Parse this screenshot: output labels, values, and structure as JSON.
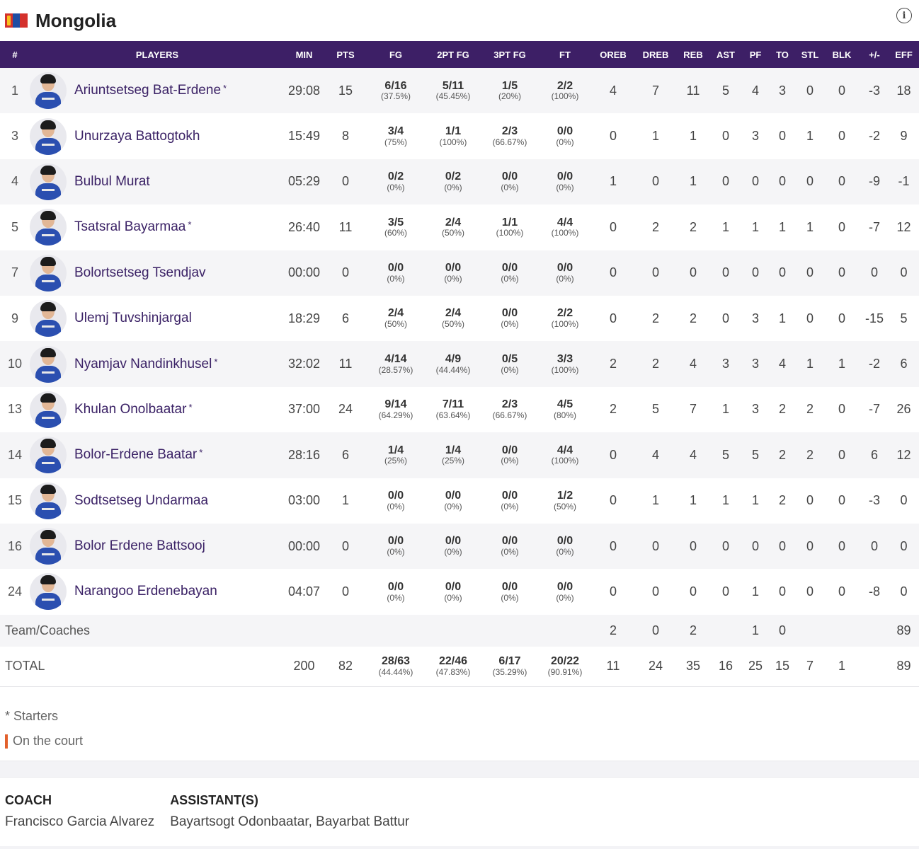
{
  "team": {
    "name": "Mongolia"
  },
  "columns": [
    "#",
    "PLAYERS",
    "MIN",
    "PTS",
    "FG",
    "2PT FG",
    "3PT FG",
    "FT",
    "OREB",
    "DREB",
    "REB",
    "AST",
    "PF",
    "TO",
    "STL",
    "BLK",
    "+/-",
    "EFF"
  ],
  "players": [
    {
      "no": "1",
      "name": "Ariuntsetseg Bat-Erdene",
      "starter": "*",
      "min": "29:08",
      "pts": "15",
      "fg": "6/16",
      "fgp": "(37.5%)",
      "fg2": "5/11",
      "fg2p": "(45.45%)",
      "fg3": "1/5",
      "fg3p": "(20%)",
      "ft": "2/2",
      "ftp": "(100%)",
      "oreb": "4",
      "dreb": "7",
      "reb": "11",
      "ast": "5",
      "pf": "4",
      "to": "3",
      "stl": "0",
      "blk": "0",
      "pm": "-3",
      "eff": "18"
    },
    {
      "no": "3",
      "name": "Unurzaya Battogtokh",
      "starter": "",
      "min": "15:49",
      "pts": "8",
      "fg": "3/4",
      "fgp": "(75%)",
      "fg2": "1/1",
      "fg2p": "(100%)",
      "fg3": "2/3",
      "fg3p": "(66.67%)",
      "ft": "0/0",
      "ftp": "(0%)",
      "oreb": "0",
      "dreb": "1",
      "reb": "1",
      "ast": "0",
      "pf": "3",
      "to": "0",
      "stl": "1",
      "blk": "0",
      "pm": "-2",
      "eff": "9"
    },
    {
      "no": "4",
      "name": "Bulbul Murat",
      "starter": "",
      "min": "05:29",
      "pts": "0",
      "fg": "0/2",
      "fgp": "(0%)",
      "fg2": "0/2",
      "fg2p": "(0%)",
      "fg3": "0/0",
      "fg3p": "(0%)",
      "ft": "0/0",
      "ftp": "(0%)",
      "oreb": "1",
      "dreb": "0",
      "reb": "1",
      "ast": "0",
      "pf": "0",
      "to": "0",
      "stl": "0",
      "blk": "0",
      "pm": "-9",
      "eff": "-1"
    },
    {
      "no": "5",
      "name": "Tsatsral Bayarmaa",
      "starter": "*",
      "min": "26:40",
      "pts": "11",
      "fg": "3/5",
      "fgp": "(60%)",
      "fg2": "2/4",
      "fg2p": "(50%)",
      "fg3": "1/1",
      "fg3p": "(100%)",
      "ft": "4/4",
      "ftp": "(100%)",
      "oreb": "0",
      "dreb": "2",
      "reb": "2",
      "ast": "1",
      "pf": "1",
      "to": "1",
      "stl": "1",
      "blk": "0",
      "pm": "-7",
      "eff": "12"
    },
    {
      "no": "7",
      "name": "Bolortsetseg Tsendjav",
      "starter": "",
      "min": "00:00",
      "pts": "0",
      "fg": "0/0",
      "fgp": "(0%)",
      "fg2": "0/0",
      "fg2p": "(0%)",
      "fg3": "0/0",
      "fg3p": "(0%)",
      "ft": "0/0",
      "ftp": "(0%)",
      "oreb": "0",
      "dreb": "0",
      "reb": "0",
      "ast": "0",
      "pf": "0",
      "to": "0",
      "stl": "0",
      "blk": "0",
      "pm": "0",
      "eff": "0"
    },
    {
      "no": "9",
      "name": "Ulemj Tuvshinjargal",
      "starter": "",
      "min": "18:29",
      "pts": "6",
      "fg": "2/4",
      "fgp": "(50%)",
      "fg2": "2/4",
      "fg2p": "(50%)",
      "fg3": "0/0",
      "fg3p": "(0%)",
      "ft": "2/2",
      "ftp": "(100%)",
      "oreb": "0",
      "dreb": "2",
      "reb": "2",
      "ast": "0",
      "pf": "3",
      "to": "1",
      "stl": "0",
      "blk": "0",
      "pm": "-15",
      "eff": "5"
    },
    {
      "no": "10",
      "name": "Nyamjav Nandinkhusel",
      "starter": "*",
      "min": "32:02",
      "pts": "11",
      "fg": "4/14",
      "fgp": "(28.57%)",
      "fg2": "4/9",
      "fg2p": "(44.44%)",
      "fg3": "0/5",
      "fg3p": "(0%)",
      "ft": "3/3",
      "ftp": "(100%)",
      "oreb": "2",
      "dreb": "2",
      "reb": "4",
      "ast": "3",
      "pf": "3",
      "to": "4",
      "stl": "1",
      "blk": "1",
      "pm": "-2",
      "eff": "6"
    },
    {
      "no": "13",
      "name": "Khulan Onolbaatar",
      "starter": "*",
      "min": "37:00",
      "pts": "24",
      "fg": "9/14",
      "fgp": "(64.29%)",
      "fg2": "7/11",
      "fg2p": "(63.64%)",
      "fg3": "2/3",
      "fg3p": "(66.67%)",
      "ft": "4/5",
      "ftp": "(80%)",
      "oreb": "2",
      "dreb": "5",
      "reb": "7",
      "ast": "1",
      "pf": "3",
      "to": "2",
      "stl": "2",
      "blk": "0",
      "pm": "-7",
      "eff": "26"
    },
    {
      "no": "14",
      "name": "Bolor-Erdene Baatar",
      "starter": "*",
      "min": "28:16",
      "pts": "6",
      "fg": "1/4",
      "fgp": "(25%)",
      "fg2": "1/4",
      "fg2p": "(25%)",
      "fg3": "0/0",
      "fg3p": "(0%)",
      "ft": "4/4",
      "ftp": "(100%)",
      "oreb": "0",
      "dreb": "4",
      "reb": "4",
      "ast": "5",
      "pf": "5",
      "to": "2",
      "stl": "2",
      "blk": "0",
      "pm": "6",
      "eff": "12"
    },
    {
      "no": "15",
      "name": "Sodtsetseg Undarmaa",
      "starter": "",
      "min": "03:00",
      "pts": "1",
      "fg": "0/0",
      "fgp": "(0%)",
      "fg2": "0/0",
      "fg2p": "(0%)",
      "fg3": "0/0",
      "fg3p": "(0%)",
      "ft": "1/2",
      "ftp": "(50%)",
      "oreb": "0",
      "dreb": "1",
      "reb": "1",
      "ast": "1",
      "pf": "1",
      "to": "2",
      "stl": "0",
      "blk": "0",
      "pm": "-3",
      "eff": "0"
    },
    {
      "no": "16",
      "name": "Bolor Erdene Battsooj",
      "starter": "",
      "min": "00:00",
      "pts": "0",
      "fg": "0/0",
      "fgp": "(0%)",
      "fg2": "0/0",
      "fg2p": "(0%)",
      "fg3": "0/0",
      "fg3p": "(0%)",
      "ft": "0/0",
      "ftp": "(0%)",
      "oreb": "0",
      "dreb": "0",
      "reb": "0",
      "ast": "0",
      "pf": "0",
      "to": "0",
      "stl": "0",
      "blk": "0",
      "pm": "0",
      "eff": "0"
    },
    {
      "no": "24",
      "name": "Narangoo Erdenebayan",
      "starter": "",
      "min": "04:07",
      "pts": "0",
      "fg": "0/0",
      "fgp": "(0%)",
      "fg2": "0/0",
      "fg2p": "(0%)",
      "fg3": "0/0",
      "fg3p": "(0%)",
      "ft": "0/0",
      "ftp": "(0%)",
      "oreb": "0",
      "dreb": "0",
      "reb": "0",
      "ast": "0",
      "pf": "1",
      "to": "0",
      "stl": "0",
      "blk": "0",
      "pm": "-8",
      "eff": "0"
    }
  ],
  "team_coaches": {
    "label": "Team/Coaches",
    "oreb": "2",
    "dreb": "0",
    "reb": "2",
    "pf": "1",
    "to": "0",
    "eff": "89"
  },
  "total": {
    "label": "TOTAL",
    "min": "200",
    "pts": "82",
    "fg": "28/63",
    "fgp": "(44.44%)",
    "fg2": "22/46",
    "fg2p": "(47.83%)",
    "fg3": "6/17",
    "fg3p": "(35.29%)",
    "ft": "20/22",
    "ftp": "(90.91%)",
    "oreb": "11",
    "dreb": "24",
    "reb": "35",
    "ast": "16",
    "pf": "25",
    "to": "15",
    "stl": "7",
    "blk": "1",
    "eff": "89"
  },
  "legend": {
    "starters": "* Starters",
    "on_court": "On the court"
  },
  "staff": {
    "coach_label": "COACH",
    "coach": "Francisco Garcia Alvarez",
    "assistant_label": "ASSISTANT(S)",
    "assistants": "Bayartsogt Odonbaatar, Bayarbat Battur"
  },
  "colors": {
    "header_bg": "#3d1f66",
    "player_name": "#3b2266",
    "on_court": "#e2602c"
  },
  "icons": {
    "flag": "mongolia-flag-icon",
    "info": "info-icon"
  }
}
